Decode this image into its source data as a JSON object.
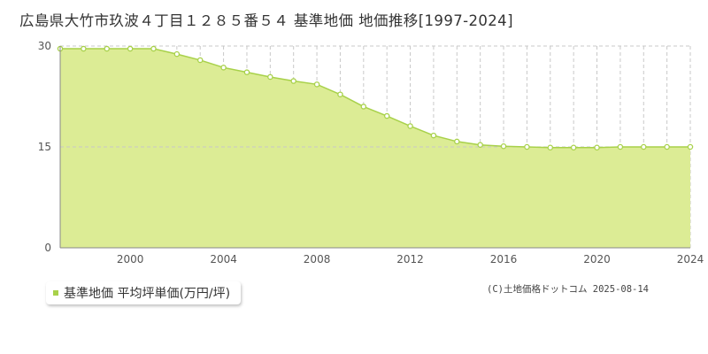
{
  "chart_data": {
    "type": "area",
    "title": "広島県大竹市玖波４丁目１２８５番５４ 基準地価 地価推移[1997-2024]",
    "xlabel": "",
    "ylabel": "",
    "xlim": [
      1997,
      2024
    ],
    "ylim": [
      0,
      30
    ],
    "y_ticks": [
      0,
      15,
      30
    ],
    "x_ticks": [
      2000,
      2004,
      2008,
      2012,
      2016,
      2020,
      2024
    ],
    "x_tick_labels": [
      "2000",
      "2004",
      "2008",
      "2012",
      "2016",
      "2020",
      "2024"
    ],
    "grid": true,
    "legend_position": "bottom-left",
    "series": [
      {
        "name": "基準地価 平均坪単価(万円/坪)",
        "color": "#a8d14a",
        "fill": "#dcec95",
        "x": [
          1997,
          1998,
          1999,
          2000,
          2001,
          2002,
          2003,
          2004,
          2005,
          2006,
          2007,
          2008,
          2009,
          2010,
          2011,
          2012,
          2013,
          2014,
          2015,
          2016,
          2017,
          2018,
          2019,
          2020,
          2021,
          2022,
          2023,
          2024
        ],
        "values": [
          29.6,
          29.6,
          29.6,
          29.6,
          29.6,
          28.8,
          27.9,
          26.8,
          26.1,
          25.4,
          24.8,
          24.3,
          22.8,
          21.0,
          19.6,
          18.1,
          16.7,
          15.8,
          15.3,
          15.1,
          15.0,
          14.9,
          14.9,
          14.9,
          15.0,
          15.0,
          15.0,
          15.0
        ]
      }
    ]
  },
  "legend": {
    "label": "基準地価 平均坪単価(万円/坪)"
  },
  "copyright": "(C)土地価格ドットコム 2025-08-14"
}
